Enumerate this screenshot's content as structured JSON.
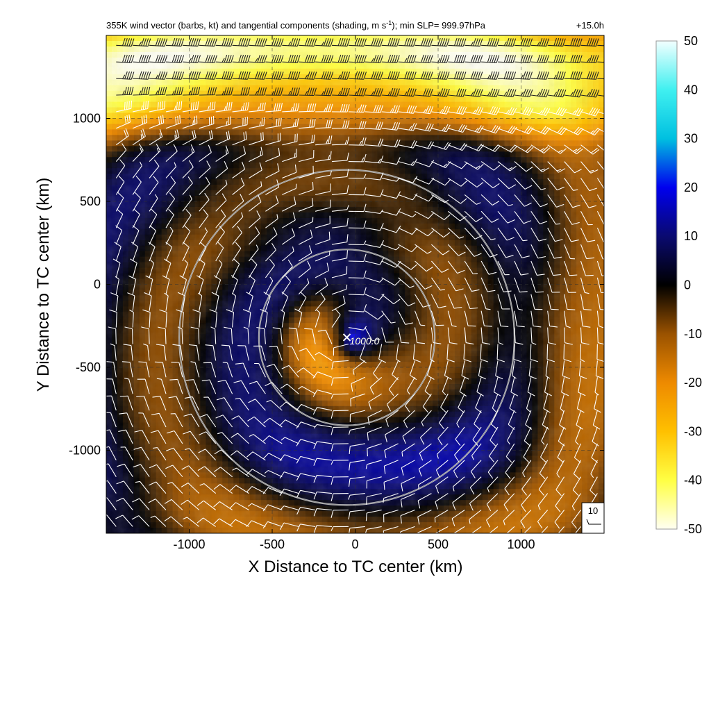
{
  "chart_data": {
    "type": "heatmap",
    "title": "355K wind vector (barbs, kt) and tangential components (shading, m s",
    "title_sup": "-1",
    "title_tail": "); min SLP= 999.97hPa",
    "time_label": "+15.0h",
    "xlabel": "X Distance to TC center (km)",
    "ylabel": "Y Distance to TC center (km)",
    "xlim": [
      -1500,
      1500
    ],
    "ylim": [
      -1500,
      1500
    ],
    "x_ticks": [
      -1000,
      -500,
      0,
      500,
      1000
    ],
    "x_tick_labels": [
      "-1000",
      "-500",
      "0",
      "500",
      "1000"
    ],
    "y_ticks": [
      -1000,
      -500,
      0,
      500,
      1000
    ],
    "y_tick_labels": [
      "-1000",
      "-500",
      "0",
      "500",
      "1000"
    ],
    "grid": true,
    "colorbar": {
      "min": -50,
      "max": 50,
      "ticks": [
        50,
        40,
        30,
        20,
        10,
        0,
        -10,
        -20,
        -30,
        -40,
        -50
      ],
      "tick_labels": [
        "50",
        "40",
        "30",
        "20",
        "10",
        "0",
        "-10",
        "-20",
        "-30",
        "-40",
        "-50"
      ],
      "stops": [
        {
          "v": -50,
          "c": "#fffff2"
        },
        {
          "v": -40,
          "c": "#ffff44"
        },
        {
          "v": -30,
          "c": "#ffc000"
        },
        {
          "v": -20,
          "c": "#ee8a00"
        },
        {
          "v": -10,
          "c": "#9a5200"
        },
        {
          "v": 0,
          "c": "#000000"
        },
        {
          "v": 10,
          "c": "#0a0a70"
        },
        {
          "v": 20,
          "c": "#0000ee"
        },
        {
          "v": 30,
          "c": "#00c0e0"
        },
        {
          "v": 40,
          "c": "#40f0f0"
        },
        {
          "v": 50,
          "c": "#f2ffff"
        }
      ]
    },
    "tc_center": {
      "x": -50,
      "y": -320,
      "label": "1000.0"
    },
    "rings_km": [
      {
        "cx": -50,
        "cy": -320,
        "r": 530
      },
      {
        "cx": -50,
        "cy": -320,
        "r": 1010
      }
    ],
    "reference_barb": {
      "label": "10"
    }
  }
}
